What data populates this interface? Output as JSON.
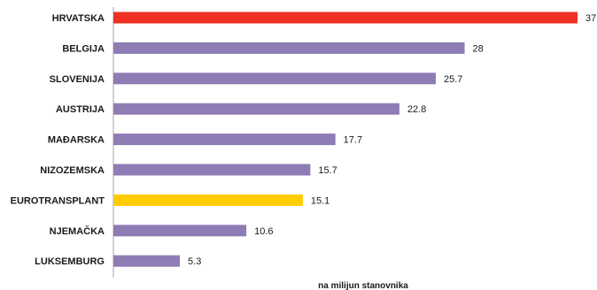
{
  "chart_data": {
    "type": "bar",
    "orientation": "horizontal",
    "categories": [
      "HRVATSKA",
      "BELGIJA",
      "SLOVENIJA",
      "AUSTRIJA",
      "MAĐARSKA",
      "NIZOZEMSKA",
      "EUROTRANSPLANT",
      "NJEMAČKA",
      "LUKSEMBURG"
    ],
    "values": [
      37,
      28,
      25.7,
      22.8,
      17.7,
      15.7,
      15.1,
      10.6,
      5.3
    ],
    "value_labels": [
      "37",
      "28",
      "25.7",
      "22.8",
      "17.7",
      "15.7",
      "15.1",
      "10.6",
      "5.3"
    ],
    "bar_colors": [
      "#ee3124",
      "#8e7cb5",
      "#8e7cb5",
      "#8e7cb5",
      "#8e7cb5",
      "#8e7cb5",
      "#ffcc00",
      "#8e7cb5",
      "#8e7cb5"
    ],
    "xlabel": "na milijun stanovnika",
    "xlim": [
      0,
      37
    ],
    "grid": false,
    "legend": "none"
  }
}
